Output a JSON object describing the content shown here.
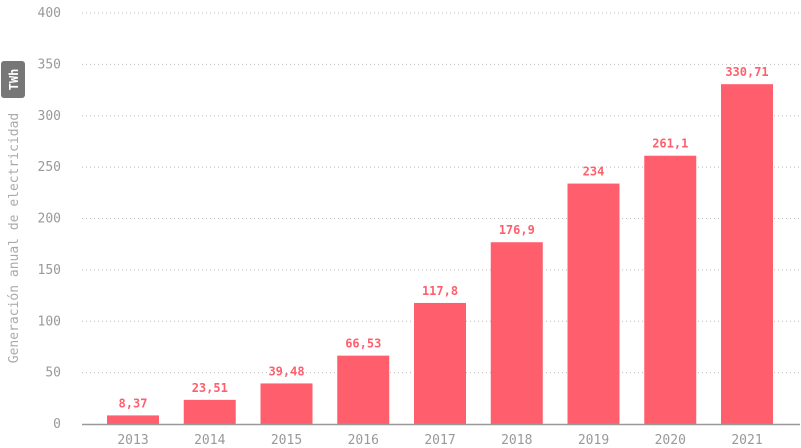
{
  "chart_data": {
    "type": "bar",
    "categories": [
      "2013",
      "2014",
      "2015",
      "2016",
      "2017",
      "2018",
      "2019",
      "2020",
      "2021"
    ],
    "values": [
      8.37,
      23.51,
      39.48,
      66.53,
      117.8,
      176.9,
      234,
      261.1,
      330.71
    ],
    "data_labels": [
      "8,37",
      "23,51",
      "39,48",
      "66,53",
      "117,8",
      "176,9",
      "234",
      "261,1",
      "330,71"
    ],
    "ylabel": "Generación anual de electricidad",
    "unit": "TWh",
    "ylim": [
      0,
      400
    ],
    "yticks": [
      0,
      50,
      100,
      150,
      200,
      250,
      300,
      350,
      400
    ],
    "grid": true,
    "bar_color": "#ff5f6d"
  }
}
